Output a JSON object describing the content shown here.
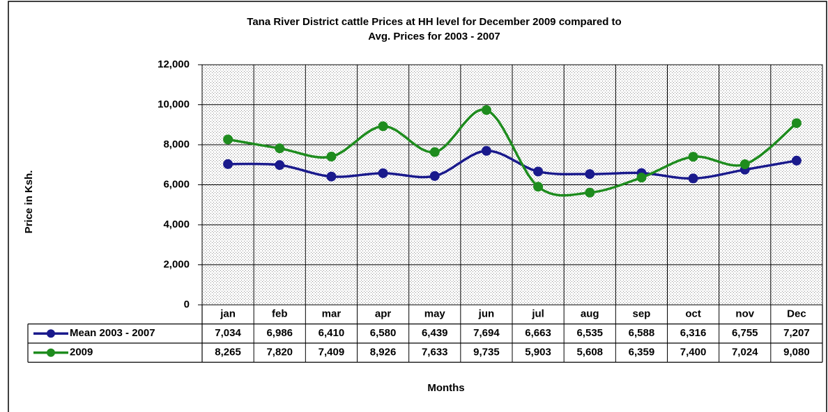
{
  "chart_data": {
    "type": "line",
    "title": "Tana River District cattle Prices at HH level for December 2009 compared to",
    "subtitle": "Avg. Prices for 2003 - 2007",
    "y_label": "Price in Ksh.",
    "x_label": "Months",
    "categories": [
      "jan",
      "feb",
      "mar",
      "apr",
      "may",
      "jun",
      "jul",
      "aug",
      "sep",
      "oct",
      "nov",
      "Dec"
    ],
    "series": [
      {
        "name": "Mean 2003 - 2007",
        "color": "#1a1a8c",
        "values": [
          7034,
          6986,
          6410,
          6580,
          6439,
          7694,
          6663,
          6535,
          6588,
          6316,
          6755,
          7207
        ],
        "value_labels": [
          "7,034",
          "6,986",
          "6,410",
          "6,580",
          "6,439",
          "7,694",
          "6,663",
          "6,535",
          "6,588",
          "6,316",
          "6,755",
          "7,207"
        ]
      },
      {
        "name": "2009",
        "color": "#1e8c1e",
        "values": [
          8265,
          7820,
          7409,
          8926,
          7633,
          9735,
          5903,
          5608,
          6359,
          7400,
          7024,
          9080
        ],
        "value_labels": [
          "8,265",
          "7,820",
          "7,409",
          "8,926",
          "7,633",
          "9,735",
          "5,903",
          "5,608",
          "6,359",
          "7,400",
          "7,024",
          "9,080"
        ]
      }
    ],
    "ylim": [
      0,
      12000
    ],
    "yticks": [
      0,
      {
        "value": 2000,
        "label": "2,000"
      },
      {
        "value": 4000,
        "label": "4,000"
      },
      {
        "value": 6000,
        "label": "6,000"
      },
      {
        "value": 8000,
        "label": "8,000"
      },
      {
        "value": 10000,
        "label": "10,000"
      },
      {
        "value": 12000,
        "label": "12,000"
      }
    ],
    "grid": true
  }
}
